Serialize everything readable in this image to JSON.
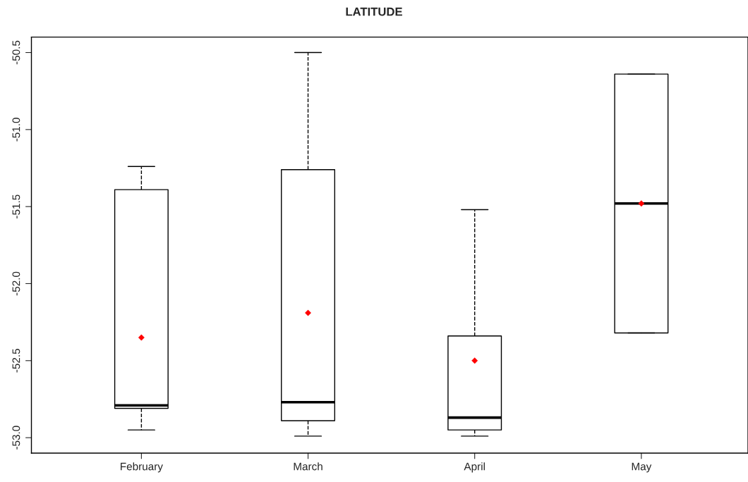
{
  "chart_data": {
    "type": "box",
    "title": "LATITUDE",
    "categories": [
      "February",
      "March",
      "April",
      "May"
    ],
    "boxes": [
      {
        "low": -52.95,
        "q1": -52.81,
        "median": -52.79,
        "q3": -51.39,
        "high": -51.24
      },
      {
        "low": -52.99,
        "q1": -52.89,
        "median": -52.77,
        "q3": -51.26,
        "high": -50.5
      },
      {
        "low": -52.99,
        "q1": -52.95,
        "median": -52.87,
        "q3": -52.34,
        "high": -51.52
      },
      {
        "low": -52.32,
        "q1": -52.32,
        "median": -51.48,
        "q3": -50.64,
        "high": -50.64
      }
    ],
    "series": [
      {
        "type": "scatter",
        "x": [
          "February",
          "March",
          "April",
          "May"
        ],
        "values": [
          -52.35,
          -52.19,
          -52.5,
          -51.48
        ],
        "color": "#ff0000",
        "marker": "diamond"
      }
    ],
    "ylim": [
      -53.1,
      -50.4
    ],
    "yticks": [
      -50.5,
      {
        "value": -51,
        "label": "-51.0"
      },
      -51.5,
      {
        "value": -52,
        "label": "-52.0"
      },
      -52.5,
      {
        "value": -53,
        "label": "-53.0"
      }
    ],
    "grid": false,
    "legend": false
  }
}
